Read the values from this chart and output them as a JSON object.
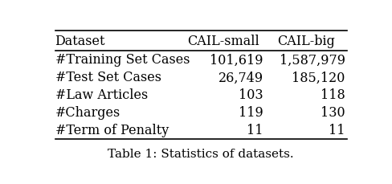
{
  "title": "Table 1: Statistics of datasets.",
  "col_headers": [
    "Dataset",
    "CAIL-small",
    "CAIL-big"
  ],
  "rows": [
    [
      "#Training Set Cases",
      "101,619",
      "1,587,979"
    ],
    [
      "#Test Set Cases",
      "26,749",
      "185,120"
    ],
    [
      "#Law Articles",
      "103",
      "118"
    ],
    [
      "#Charges",
      "119",
      "130"
    ],
    [
      "#Term of Penalty",
      "11",
      "11"
    ]
  ],
  "background_color": "#ffffff",
  "text_color": "#000000",
  "header_fontsize": 11.5,
  "cell_fontsize": 11.5,
  "title_fontsize": 11.0,
  "figsize": [
    4.88,
    2.3
  ],
  "dpi": 100
}
